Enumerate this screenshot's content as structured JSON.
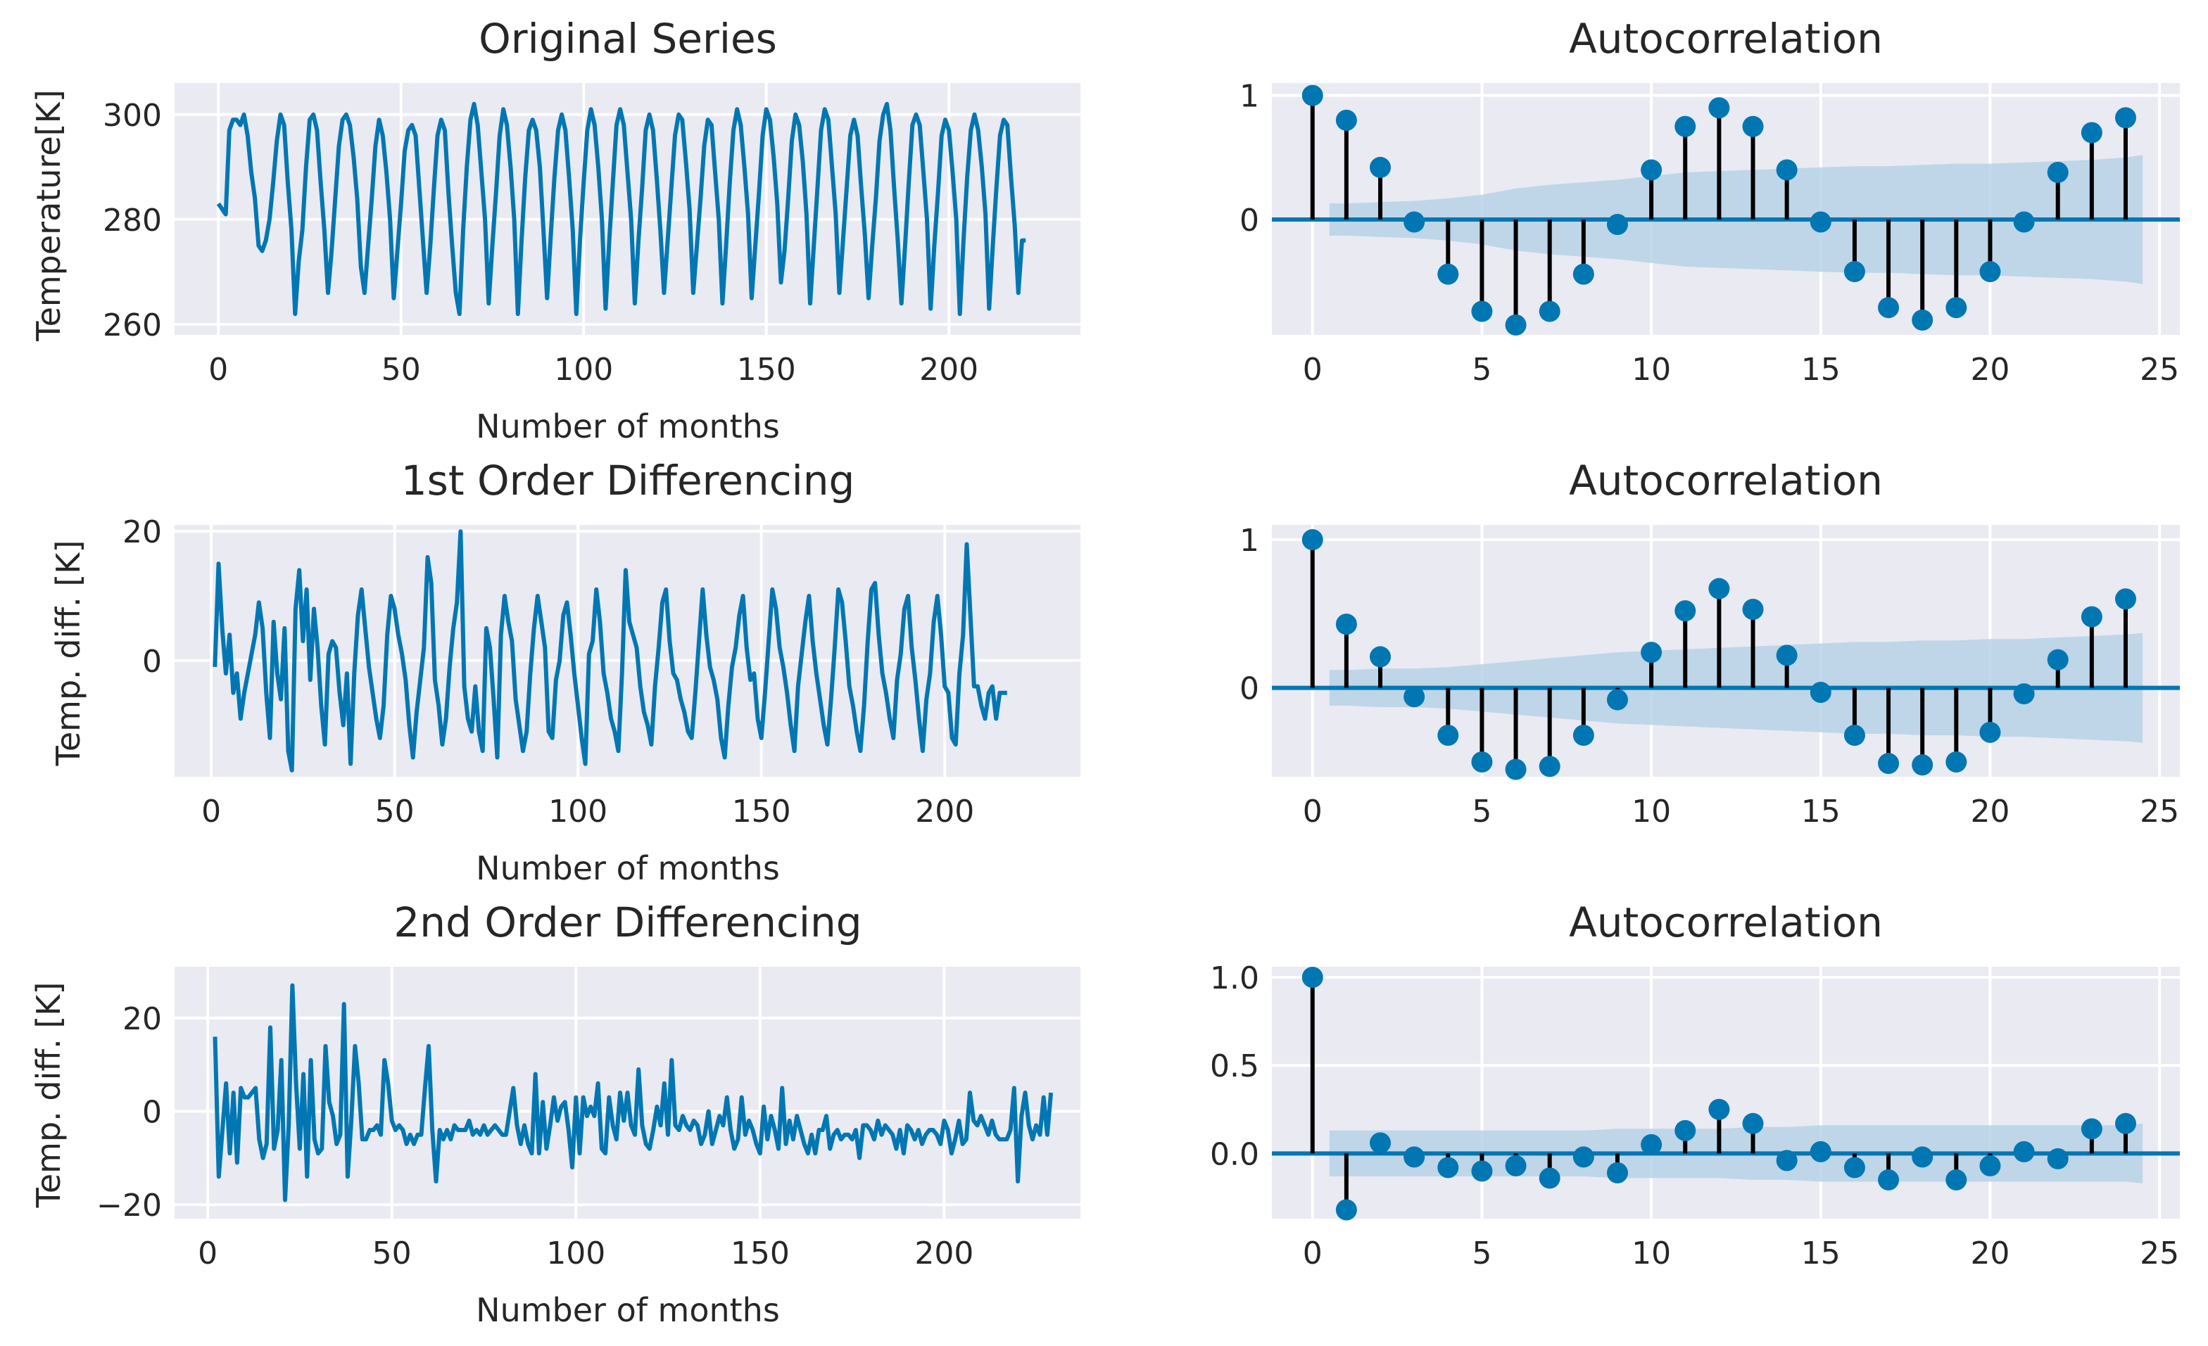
{
  "figure": {
    "background": "#ffffff",
    "plot_background": "#eaeaf2",
    "line_color": "#0077b3",
    "stem_color": "#000000",
    "band_color": "#b6d2e6"
  },
  "chart_data": [
    {
      "id": "orig",
      "type": "line",
      "title": "Original Series",
      "xlabel": "Number of months",
      "ylabel": "Temperature[K]",
      "xlim": [
        -12,
        236
      ],
      "ylim": [
        258,
        306
      ],
      "xticks": [
        0,
        50,
        100,
        150,
        200
      ],
      "xtick_labels": [
        "0",
        "50",
        "100",
        "150",
        "200"
      ],
      "yticks": [
        260,
        280,
        300
      ],
      "ytick_labels": [
        "260",
        "280",
        "300"
      ],
      "x_start": 0,
      "values": [
        283,
        282,
        281,
        297,
        299,
        299,
        298,
        300,
        296,
        289,
        284,
        275,
        274,
        276,
        280,
        287,
        295,
        300,
        298,
        287,
        278,
        262,
        272,
        278,
        290,
        299,
        300,
        297,
        287,
        278,
        266,
        274,
        284,
        294,
        299,
        300,
        298,
        292,
        284,
        271,
        266,
        275,
        284,
        294,
        299,
        296,
        289,
        280,
        265,
        274,
        283,
        293,
        297,
        298,
        296,
        286,
        276,
        266,
        275,
        286,
        296,
        299,
        297,
        285,
        275,
        266,
        262,
        278,
        290,
        299,
        302,
        298,
        289,
        280,
        264,
        275,
        285,
        296,
        301,
        298,
        290,
        280,
        262,
        276,
        288,
        297,
        299,
        297,
        290,
        278,
        265,
        277,
        288,
        297,
        300,
        297,
        288,
        278,
        262,
        276,
        287,
        297,
        301,
        298,
        290,
        280,
        263,
        276,
        287,
        298,
        301,
        298,
        289,
        280,
        264,
        276,
        286,
        297,
        300,
        297,
        288,
        278,
        266,
        276,
        286,
        296,
        300,
        299,
        291,
        282,
        266,
        275,
        284,
        294,
        299,
        298,
        289,
        280,
        264,
        275,
        287,
        297,
        301,
        298,
        290,
        281,
        265,
        275,
        285,
        296,
        301,
        299,
        292,
        283,
        268,
        274,
        284,
        295,
        300,
        298,
        291,
        281,
        264,
        275,
        286,
        297,
        301,
        299,
        290,
        281,
        266,
        276,
        286,
        296,
        299,
        296,
        286,
        277,
        265,
        275,
        284,
        295,
        300,
        302,
        297,
        286,
        276,
        264,
        275,
        287,
        298,
        300,
        298,
        289,
        280,
        263,
        275,
        285,
        296,
        299,
        297,
        289,
        280,
        262,
        276,
        288,
        297,
        300,
        297,
        290,
        281,
        263,
        275,
        286,
        296,
        299,
        298,
        288,
        279,
        266,
        276,
        276
      ],
      "series": [
        {
          "name": "Original Series"
        }
      ]
    },
    {
      "id": "acf1",
      "type": "stem",
      "title": "Autocorrelation",
      "xlim": [
        -1.2,
        25.6
      ],
      "ylim": [
        -0.93,
        1.1
      ],
      "xticks": [
        0,
        5,
        10,
        15,
        20,
        25
      ],
      "xtick_labels": [
        "0",
        "5",
        "10",
        "15",
        "20",
        "25"
      ],
      "yticks": [
        0,
        1
      ],
      "ytick_labels": [
        "0",
        "1"
      ],
      "lags": [
        0,
        1,
        2,
        3,
        4,
        5,
        6,
        7,
        8,
        9,
        10,
        11,
        12,
        13,
        14,
        15,
        16,
        17,
        18,
        19,
        20,
        21,
        22,
        23,
        24
      ],
      "values": [
        1.0,
        0.8,
        0.42,
        -0.02,
        -0.44,
        -0.74,
        -0.85,
        -0.74,
        -0.44,
        -0.04,
        0.4,
        0.75,
        0.9,
        0.75,
        0.4,
        -0.02,
        -0.42,
        -0.71,
        -0.81,
        -0.71,
        -0.42,
        -0.02,
        0.38,
        0.7,
        0.82
      ],
      "confidence_band": {
        "lags": [
          0.5,
          1,
          2,
          3,
          4,
          5,
          6,
          7,
          8,
          9,
          10,
          11,
          12,
          13,
          14,
          15,
          16,
          17,
          18,
          19,
          20,
          21,
          22,
          23,
          24,
          24.5
        ],
        "upper": [
          0.13,
          0.13,
          0.14,
          0.15,
          0.17,
          0.2,
          0.25,
          0.28,
          0.3,
          0.32,
          0.35,
          0.38,
          0.39,
          0.4,
          0.41,
          0.42,
          0.43,
          0.43,
          0.44,
          0.45,
          0.45,
          0.46,
          0.47,
          0.48,
          0.5,
          0.52
        ],
        "lower": [
          -0.13,
          -0.13,
          -0.14,
          -0.15,
          -0.17,
          -0.2,
          -0.25,
          -0.28,
          -0.3,
          -0.32,
          -0.35,
          -0.38,
          -0.39,
          -0.4,
          -0.41,
          -0.42,
          -0.43,
          -0.43,
          -0.44,
          -0.45,
          -0.45,
          -0.46,
          -0.47,
          -0.48,
          -0.5,
          -0.52
        ]
      }
    },
    {
      "id": "diff1",
      "type": "line",
      "title": "1st Order Differencing",
      "xlabel": "Number of months",
      "ylabel": "Temp. diff. [K]",
      "xlim": [
        -10,
        237
      ],
      "ylim": [
        -18,
        21
      ],
      "xticks": [
        0,
        50,
        100,
        150,
        200
      ],
      "xtick_labels": [
        "0",
        "50",
        "100",
        "150",
        "200"
      ],
      "yticks": [
        0,
        20
      ],
      "ytick_labels": [
        "0",
        "20"
      ],
      "x_start": 1,
      "values": [
        -1,
        15,
        5,
        -2,
        4,
        -5,
        -2,
        -9,
        -5,
        -2,
        1,
        4,
        9,
        5,
        -5,
        -12,
        6,
        -2,
        -6,
        5,
        -14,
        -17,
        8,
        14,
        3,
        11,
        -3,
        8,
        2,
        -7,
        -13,
        1,
        3,
        2,
        -5,
        -10,
        -2,
        -16,
        -2,
        7,
        11,
        5,
        -1,
        -5,
        -9,
        -12,
        -7,
        4,
        10,
        8,
        4,
        1,
        -3,
        -10,
        -15,
        -8,
        -3,
        2,
        16,
        12,
        -3,
        -7,
        -13,
        -9,
        -1,
        5,
        9,
        20,
        -4,
        -9,
        -11,
        -4,
        -11,
        -14,
        5,
        2,
        -6,
        -15,
        4,
        10,
        6,
        3,
        -6,
        -10,
        -14,
        -11,
        -2,
        5,
        10,
        6,
        2,
        -11,
        -12,
        -3,
        0,
        7,
        9,
        4,
        -2,
        -7,
        -12,
        -16,
        1,
        3,
        11,
        6,
        -2,
        -5,
        -9,
        -11,
        -14,
        -2,
        14,
        6,
        4,
        2,
        -4,
        -8,
        -10,
        -13,
        -4,
        2,
        9,
        11,
        3,
        -2,
        -3,
        -6,
        -8,
        -11,
        -12,
        -5,
        3,
        11,
        4,
        -1,
        -3,
        -6,
        -12,
        -15,
        -7,
        -1,
        2,
        7,
        10,
        2,
        -3,
        -2,
        -9,
        -12,
        -5,
        3,
        11,
        8,
        2,
        -1,
        -5,
        -10,
        -14,
        -4,
        1,
        6,
        10,
        3,
        -2,
        -6,
        -10,
        -13,
        -6,
        2,
        11,
        9,
        3,
        -4,
        -7,
        -11,
        -14,
        -7,
        3,
        11,
        12,
        4,
        -2,
        -5,
        -9,
        -12,
        -3,
        1,
        8,
        10,
        2,
        -3,
        -9,
        -14,
        -6,
        -2,
        6,
        10,
        4,
        -4,
        -5,
        -12,
        -13,
        -2,
        4,
        18,
        7,
        -4,
        -4,
        -7,
        -9,
        -5,
        -4,
        -9,
        -5,
        -5,
        -5
      ],
      "series": [
        {
          "name": "1st Order Differencing"
        }
      ]
    },
    {
      "id": "acf2",
      "type": "stem",
      "title": "Autocorrelation",
      "xlim": [
        -1.2,
        25.6
      ],
      "ylim": [
        -0.6,
        1.1
      ],
      "xticks": [
        0,
        5,
        10,
        15,
        20,
        25
      ],
      "xtick_labels": [
        "0",
        "5",
        "10",
        "15",
        "20",
        "25"
      ],
      "yticks": [
        0,
        1
      ],
      "ytick_labels": [
        "0",
        "1"
      ],
      "lags": [
        0,
        1,
        2,
        3,
        4,
        5,
        6,
        7,
        8,
        9,
        10,
        11,
        12,
        13,
        14,
        15,
        16,
        17,
        18,
        19,
        20,
        21,
        22,
        23,
        24
      ],
      "values": [
        1.0,
        0.43,
        0.21,
        -0.06,
        -0.32,
        -0.5,
        -0.55,
        -0.53,
        -0.32,
        -0.08,
        0.24,
        0.52,
        0.67,
        0.53,
        0.22,
        -0.03,
        -0.32,
        -0.51,
        -0.52,
        -0.5,
        -0.3,
        -0.04,
        0.19,
        0.48,
        0.6
      ],
      "confidence_band": {
        "lags": [
          0.5,
          1,
          2,
          3,
          4,
          5,
          6,
          7,
          8,
          9,
          10,
          11,
          12,
          13,
          14,
          15,
          16,
          17,
          18,
          19,
          20,
          21,
          22,
          23,
          24,
          24.5
        ],
        "upper": [
          0.12,
          0.12,
          0.13,
          0.13,
          0.14,
          0.16,
          0.18,
          0.2,
          0.22,
          0.24,
          0.25,
          0.26,
          0.27,
          0.28,
          0.29,
          0.3,
          0.31,
          0.31,
          0.32,
          0.32,
          0.33,
          0.33,
          0.34,
          0.35,
          0.36,
          0.37
        ],
        "lower": [
          -0.12,
          -0.12,
          -0.13,
          -0.13,
          -0.14,
          -0.16,
          -0.18,
          -0.2,
          -0.22,
          -0.24,
          -0.25,
          -0.26,
          -0.27,
          -0.28,
          -0.29,
          -0.3,
          -0.31,
          -0.31,
          -0.32,
          -0.32,
          -0.33,
          -0.33,
          -0.34,
          -0.35,
          -0.36,
          -0.37
        ]
      }
    },
    {
      "id": "diff2",
      "type": "line",
      "title": "2nd Order Differencing",
      "xlabel": "Number of months",
      "ylabel": "Temp. diff. [K]",
      "xlim": [
        -9,
        237
      ],
      "ylim": [
        -23,
        31
      ],
      "xticks": [
        0,
        50,
        100,
        150,
        200
      ],
      "xtick_labels": [
        "0",
        "50",
        "100",
        "150",
        "200"
      ],
      "yticks": [
        -20,
        0,
        20
      ],
      "ytick_labels": [
        "−20",
        "0",
        "20"
      ],
      "x_start": 2,
      "values": [
        16,
        -14,
        -4,
        6,
        -9,
        4,
        -11,
        5,
        3,
        3,
        4,
        5,
        -6,
        -10,
        -7,
        18,
        -8,
        -4,
        11,
        -19,
        -3,
        27,
        6,
        -8,
        8,
        -14,
        11,
        -6,
        -9,
        -8,
        14,
        2,
        -1,
        -7,
        -5,
        23,
        -14,
        -2,
        14,
        6,
        -6,
        -6,
        -4,
        -4,
        -3,
        -5,
        11,
        6,
        -2,
        -4,
        -3,
        -4,
        -7,
        -5,
        -7,
        -5,
        -5,
        5,
        14,
        -4,
        -15,
        -4,
        -6,
        -4,
        -6,
        -3,
        -4,
        -4,
        -4,
        -2,
        -5,
        -4,
        -5,
        -3,
        -5,
        -4,
        -3,
        -4,
        -5,
        -5,
        0,
        5,
        -3,
        -7,
        -3,
        -7,
        -9,
        8,
        -9,
        2,
        -8,
        -3,
        3,
        -2,
        1,
        2,
        -4,
        -12,
        3,
        -9,
        3,
        -1,
        1,
        -1,
        6,
        -8,
        -9,
        3,
        -3,
        -6,
        4,
        -2,
        4,
        -3,
        -5,
        9,
        -3,
        -7,
        -8,
        -4,
        1,
        -3,
        6,
        -5,
        11,
        -3,
        -4,
        -1,
        -3,
        -4,
        -2,
        -3,
        -7,
        -5,
        0,
        -7,
        -4,
        -1,
        -3,
        3,
        -4,
        -8,
        -6,
        3,
        -5,
        -2,
        -4,
        -7,
        -9,
        1,
        -6,
        -1,
        -4,
        -8,
        5,
        -7,
        -2,
        -6,
        -1,
        -4,
        -7,
        -9,
        -5,
        -9,
        -4,
        -4,
        -1,
        -8,
        -5,
        -4,
        -6,
        -5,
        -5,
        -6,
        -4,
        -10,
        -3,
        -3,
        -4,
        -6,
        -2,
        -5,
        -3,
        -4,
        -5,
        -8,
        -4,
        -9,
        -3,
        -4,
        -6,
        -4,
        -7,
        -5,
        -4,
        -4,
        -5,
        -7,
        -2,
        -4,
        -9,
        -6,
        -2,
        -7,
        -6,
        4,
        -2,
        -3,
        -1,
        -3,
        -5,
        -2,
        -5,
        -6,
        -6,
        -6,
        -4,
        5,
        -15,
        -1,
        4,
        -3,
        -6,
        -3,
        -5,
        3,
        -5,
        4
      ],
      "series": [
        {
          "name": "2nd Order Differencing"
        }
      ]
    },
    {
      "id": "acf3",
      "type": "stem",
      "title": "Autocorrelation",
      "xlim": [
        -1.2,
        25.6
      ],
      "ylim": [
        -0.37,
        1.06
      ],
      "xticks": [
        0,
        5,
        10,
        15,
        20,
        25
      ],
      "xtick_labels": [
        "0",
        "5",
        "10",
        "15",
        "20",
        "25"
      ],
      "yticks": [
        0.0,
        0.5,
        1.0
      ],
      "ytick_labels": [
        "0.0",
        "0.5",
        "1.0"
      ],
      "lags": [
        0,
        1,
        2,
        3,
        4,
        5,
        6,
        7,
        8,
        9,
        10,
        11,
        12,
        13,
        14,
        15,
        16,
        17,
        18,
        19,
        20,
        21,
        22,
        23,
        24
      ],
      "values": [
        1.0,
        -0.32,
        0.06,
        -0.02,
        -0.08,
        -0.1,
        -0.07,
        -0.14,
        -0.02,
        -0.11,
        0.05,
        0.13,
        0.25,
        0.17,
        -0.04,
        0.01,
        -0.08,
        -0.15,
        -0.02,
        -0.15,
        -0.07,
        0.01,
        -0.03,
        0.14,
        0.17
      ],
      "confidence_band": {
        "lags": [
          0.5,
          1,
          2,
          3,
          4,
          5,
          6,
          7,
          8,
          9,
          10,
          11,
          12,
          13,
          14,
          15,
          16,
          17,
          18,
          19,
          20,
          21,
          22,
          23,
          24,
          24.5
        ],
        "upper": [
          0.13,
          0.13,
          0.13,
          0.13,
          0.13,
          0.13,
          0.13,
          0.13,
          0.13,
          0.14,
          0.14,
          0.14,
          0.14,
          0.15,
          0.15,
          0.16,
          0.16,
          0.16,
          0.16,
          0.16,
          0.16,
          0.16,
          0.16,
          0.16,
          0.16,
          0.17
        ],
        "lower": [
          -0.13,
          -0.13,
          -0.13,
          -0.13,
          -0.13,
          -0.13,
          -0.13,
          -0.13,
          -0.13,
          -0.14,
          -0.14,
          -0.14,
          -0.14,
          -0.15,
          -0.15,
          -0.16,
          -0.16,
          -0.16,
          -0.16,
          -0.16,
          -0.16,
          -0.16,
          -0.16,
          -0.16,
          -0.16,
          -0.17
        ]
      }
    }
  ]
}
